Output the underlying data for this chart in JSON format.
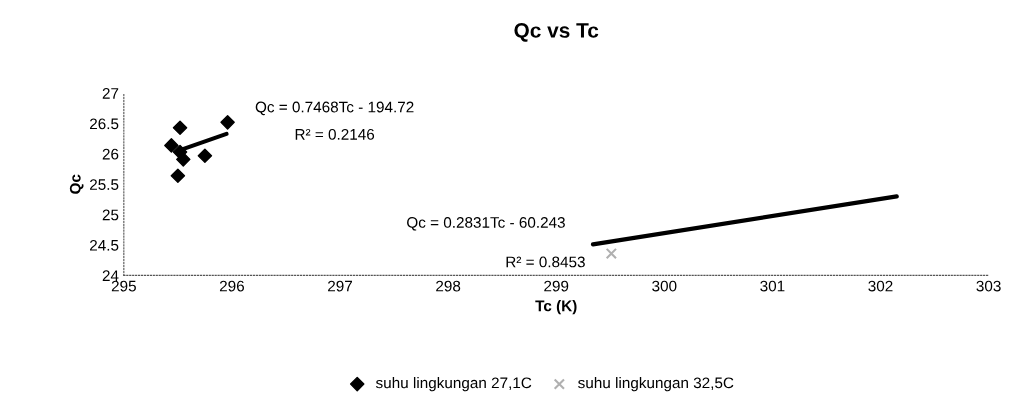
{
  "chart_data": {
    "type": "scatter",
    "title": "Qc vs Tc",
    "xlabel": "Tc (K)",
    "ylabel": "Qc",
    "xlim": [
      295,
      303
    ],
    "xticks": [
      295,
      296,
      297,
      298,
      299,
      300,
      301,
      302,
      303
    ],
    "ylim": [
      24,
      27
    ],
    "yticks": [
      24,
      24.5,
      25,
      25.5,
      26,
      26.5,
      27
    ],
    "grid": false,
    "legend": "bottom",
    "annotations": [
      "Qc = 0.7468Tc - 194.72",
      "R² = 0.2146",
      "Qc = 0.2831Tc - 60.243",
      "R² = 0.8453"
    ],
    "series": [
      {
        "name": "suhu lingkungan 27,1C",
        "marker": "diamond",
        "color": "#000000",
        "x": [
          295.52,
          295.96,
          295.44,
          295.52,
          295.55,
          295.75,
          295.5
        ],
        "values": [
          26.43,
          26.52,
          26.14,
          26.03,
          25.91,
          25.97,
          25.64
        ]
      },
      {
        "name": "suhu lingkungan 32,5C",
        "marker": "cross",
        "color": "#b0b0b0",
        "x": [
          299.51
        ],
        "values": [
          24.36
        ]
      },
      {
        "type": "line",
        "color": "#000000",
        "x": [
          295.5,
          295.95
        ],
        "values": [
          26.05,
          26.33
        ]
      },
      {
        "type": "line",
        "color": "#000000",
        "x": [
          299.34,
          302.15
        ],
        "values": [
          24.51,
          25.3
        ]
      }
    ]
  }
}
